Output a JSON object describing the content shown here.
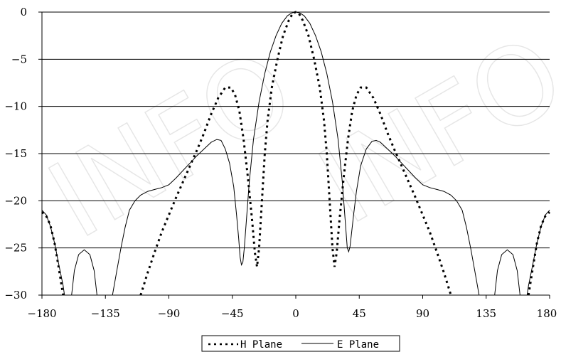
{
  "watermark": "INFO",
  "chart_data": {
    "type": "line",
    "title": "",
    "xlabel": "",
    "ylabel": "",
    "xlim": [
      -180,
      180
    ],
    "ylim": [
      -30,
      0
    ],
    "x_ticks": [
      -180,
      -135,
      -90,
      -45,
      0,
      45,
      90,
      135,
      180
    ],
    "y_ticks": [
      0,
      -5,
      -10,
      -15,
      -20,
      -25,
      -30
    ],
    "grid": "horizontal",
    "legend": "bottom-center",
    "series": [
      {
        "name": "H Plane",
        "style": "dotted",
        "color": "#000000",
        "segments": [
          [
            [
              -180,
              -21.2
            ],
            [
              -177,
              -21.6
            ],
            [
              -174,
              -22.6
            ],
            [
              -171,
              -24.5
            ],
            [
              -168,
              -27.2
            ],
            [
              -165,
              -30
            ]
          ],
          [
            [
              -110,
              -30
            ],
            [
              -105,
              -27.6
            ],
            [
              -100,
              -25.4
            ],
            [
              -95,
              -23.3
            ],
            [
              -90,
              -21.5
            ],
            [
              -85,
              -19.7
            ],
            [
              -80,
              -18.0
            ],
            [
              -75,
              -16.3
            ],
            [
              -70,
              -14.6
            ],
            [
              -65,
              -12.8
            ],
            [
              -60,
              -10.8
            ],
            [
              -55,
              -9.1
            ],
            [
              -50,
              -8.0
            ],
            [
              -46,
              -8.0
            ],
            [
              -43,
              -8.8
            ],
            [
              -40,
              -10.5
            ],
            [
              -37,
              -13.5
            ],
            [
              -34,
              -17.5
            ],
            [
              -31,
              -22.0
            ],
            [
              -29,
              -25.5
            ],
            [
              -27.5,
              -27.0
            ],
            [
              -26,
              -25.0
            ],
            [
              -24,
              -20.0
            ],
            [
              -22,
              -15.0
            ],
            [
              -20,
              -11.5
            ],
            [
              -17,
              -8.0
            ],
            [
              -13,
              -5.0
            ],
            [
              -9,
              -2.5
            ],
            [
              -5,
              -0.9
            ],
            [
              -2,
              -0.1
            ],
            [
              0,
              0
            ],
            [
              2,
              -0.1
            ],
            [
              5,
              -0.9
            ],
            [
              9,
              -2.5
            ],
            [
              13,
              -5.0
            ],
            [
              17,
              -8.0
            ],
            [
              20,
              -11.5
            ],
            [
              22,
              -15.0
            ],
            [
              24,
              -20.0
            ],
            [
              26,
              -25.0
            ],
            [
              27.5,
              -27.0
            ],
            [
              29,
              -25.5
            ],
            [
              31,
              -22.0
            ],
            [
              34,
              -17.5
            ],
            [
              37,
              -13.5
            ],
            [
              40,
              -10.5
            ],
            [
              43,
              -8.8
            ],
            [
              46,
              -8.0
            ],
            [
              50,
              -8.0
            ],
            [
              55,
              -9.1
            ],
            [
              60,
              -10.8
            ],
            [
              65,
              -12.8
            ],
            [
              70,
              -14.6
            ],
            [
              75,
              -16.3
            ],
            [
              80,
              -18.0
            ],
            [
              85,
              -19.7
            ],
            [
              90,
              -21.5
            ],
            [
              95,
              -23.3
            ],
            [
              100,
              -25.4
            ],
            [
              105,
              -27.6
            ],
            [
              110,
              -30
            ]
          ],
          [
            [
              165,
              -30
            ],
            [
              168,
              -27.2
            ],
            [
              171,
              -24.5
            ],
            [
              174,
              -22.6
            ],
            [
              177,
              -21.6
            ],
            [
              180,
              -21.2
            ]
          ]
        ]
      },
      {
        "name": "E Plane",
        "style": "solid",
        "color": "#000000",
        "segments": [
          [
            [
              -180,
              -21.0
            ],
            [
              -177,
              -21.5
            ],
            [
              -174,
              -22.7
            ],
            [
              -171,
              -24.5
            ],
            [
              -168,
              -26.8
            ],
            [
              -165,
              -29.0
            ],
            [
              -164,
              -30
            ]
          ],
          [
            [
              -159,
              -30
            ],
            [
              -157,
              -27.4
            ],
            [
              -154,
              -25.7
            ],
            [
              -150,
              -25.2
            ],
            [
              -146,
              -25.7
            ],
            [
              -143,
              -27.4
            ],
            [
              -141,
              -30
            ]
          ],
          [
            [
              -130,
              -30
            ],
            [
              -127,
              -27.5
            ],
            [
              -124,
              -25.0
            ],
            [
              -121,
              -22.8
            ],
            [
              -118,
              -21.0
            ],
            [
              -114,
              -20.0
            ],
            [
              -110,
              -19.4
            ],
            [
              -105,
              -19.0
            ],
            [
              -100,
              -18.8
            ],
            [
              -95,
              -18.6
            ],
            [
              -90,
              -18.3
            ],
            [
              -85,
              -17.6
            ],
            [
              -80,
              -16.8
            ],
            [
              -75,
              -16.0
            ],
            [
              -70,
              -15.2
            ],
            [
              -65,
              -14.5
            ],
            [
              -60,
              -13.8
            ],
            [
              -56,
              -13.5
            ],
            [
              -53,
              -13.6
            ],
            [
              -50,
              -14.5
            ],
            [
              -47,
              -16.0
            ],
            [
              -44,
              -18.5
            ],
            [
              -42,
              -21.5
            ],
            [
              -40.5,
              -24.0
            ],
            [
              -39.5,
              -26.0
            ],
            [
              -38.5,
              -26.8
            ],
            [
              -37.5,
              -26.5
            ],
            [
              -36.5,
              -25.0
            ],
            [
              -35,
              -22.0
            ],
            [
              -33,
              -18.0
            ],
            [
              -30,
              -13.5
            ],
            [
              -26,
              -9.5
            ],
            [
              -22,
              -6.5
            ],
            [
              -18,
              -4.2
            ],
            [
              -14,
              -2.5
            ],
            [
              -10,
              -1.2
            ],
            [
              -6,
              -0.4
            ],
            [
              -3,
              -0.1
            ],
            [
              0,
              0
            ],
            [
              3,
              -0.1
            ],
            [
              6,
              -0.4
            ],
            [
              10,
              -1.2
            ],
            [
              14,
              -2.5
            ],
            [
              18,
              -4.2
            ],
            [
              22,
              -6.5
            ],
            [
              26,
              -9.5
            ],
            [
              30,
              -13.5
            ],
            [
              33,
              -18.0
            ],
            [
              35,
              -22.0
            ],
            [
              36.5,
              -25.0
            ],
            [
              37.5,
              -25.4
            ],
            [
              38.5,
              -24.8
            ],
            [
              39.5,
              -23.5
            ],
            [
              41,
              -21.5
            ],
            [
              43,
              -19.0
            ],
            [
              46,
              -16.3
            ],
            [
              50,
              -14.5
            ],
            [
              54,
              -13.7
            ],
            [
              57,
              -13.6
            ],
            [
              60,
              -13.8
            ],
            [
              65,
              -14.5
            ],
            [
              70,
              -15.2
            ],
            [
              75,
              -16.0
            ],
            [
              80,
              -16.8
            ],
            [
              85,
              -17.6
            ],
            [
              90,
              -18.3
            ],
            [
              95,
              -18.6
            ],
            [
              100,
              -18.8
            ],
            [
              105,
              -19.0
            ],
            [
              110,
              -19.4
            ],
            [
              114,
              -20.0
            ],
            [
              118,
              -21.0
            ],
            [
              121,
              -22.8
            ],
            [
              124,
              -25.0
            ],
            [
              127,
              -27.5
            ],
            [
              130,
              -30
            ]
          ],
          [
            [
              141,
              -30
            ],
            [
              143,
              -27.4
            ],
            [
              146,
              -25.7
            ],
            [
              150,
              -25.2
            ],
            [
              154,
              -25.7
            ],
            [
              157,
              -27.4
            ],
            [
              159,
              -30
            ]
          ],
          [
            [
              164,
              -30
            ],
            [
              165,
              -29.0
            ],
            [
              168,
              -26.8
            ],
            [
              171,
              -24.5
            ],
            [
              174,
              -22.7
            ],
            [
              177,
              -21.5
            ],
            [
              180,
              -21.0
            ]
          ]
        ]
      }
    ]
  }
}
